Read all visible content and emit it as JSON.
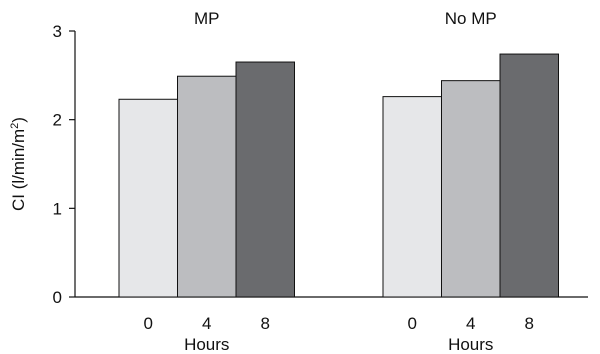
{
  "chart_data": {
    "type": "bar",
    "y_axis": {
      "label_main": "CI (l/min/m",
      "label_sup": "2",
      "label_close": ")",
      "ylim": [
        0,
        3
      ],
      "ticks": [
        "0",
        "1",
        "2",
        "3"
      ]
    },
    "groups": [
      {
        "title": "MP",
        "xlabel": "Hours",
        "categories": [
          "0",
          "4",
          "8"
        ],
        "values": [
          2.23,
          2.49,
          2.65
        ]
      },
      {
        "title": "No MP",
        "xlabel": "Hours",
        "categories": [
          "0",
          "4",
          "8"
        ],
        "values": [
          2.26,
          2.44,
          2.74
        ]
      }
    ],
    "bar_colors": [
      "#e6e7e9",
      "#bcbdc0",
      "#6a6b6e"
    ],
    "grid": false,
    "legend": "none"
  }
}
